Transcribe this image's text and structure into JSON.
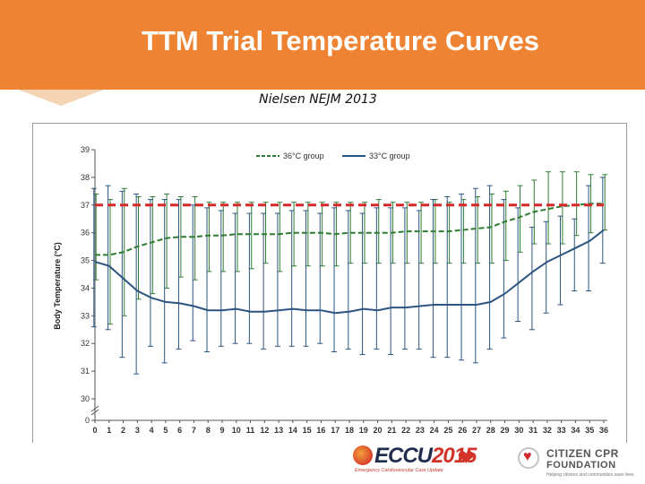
{
  "header": {
    "title": "TTM Trial Temperature Curves",
    "subtitle": "Nielsen NEJM 2013"
  },
  "colors": {
    "banner": "#ee8433",
    "green_series": "#2e7d32",
    "blue_series": "#2c5580",
    "reference_line": "#d62828"
  },
  "chart_data": {
    "type": "line",
    "title": "",
    "xlabel": "",
    "ylabel": "Body Temperature (°C)",
    "x": [
      0,
      1,
      2,
      3,
      4,
      5,
      6,
      7,
      8,
      9,
      10,
      11,
      12,
      13,
      14,
      15,
      16,
      17,
      18,
      19,
      20,
      21,
      22,
      23,
      24,
      25,
      26,
      27,
      28,
      29,
      30,
      31,
      32,
      33,
      34,
      35,
      36
    ],
    "x_tick_labels": [
      "0",
      "1",
      "2",
      "3",
      "4",
      "5",
      "6",
      "7",
      "8",
      "9",
      "10",
      "11",
      "12",
      "13",
      "14",
      "15",
      "16",
      "17",
      "18",
      "19",
      "20",
      "21",
      "22",
      "23",
      "24",
      "25",
      "26",
      "27",
      "28",
      "29",
      "30",
      "31",
      "32",
      "33",
      "34",
      "35",
      "36"
    ],
    "y_tick_labels": [
      "0",
      "30",
      "31",
      "32",
      "33",
      "34",
      "35",
      "36",
      "37",
      "38",
      "39"
    ],
    "ylim": [
      30,
      39
    ],
    "y_axis_break": true,
    "legend": {
      "position": "top-center"
    },
    "series": [
      {
        "name": "36°C group",
        "style": "dashed",
        "color": "#2e7d32",
        "values": [
          35.2,
          35.2,
          35.3,
          35.5,
          35.65,
          35.8,
          35.85,
          35.85,
          35.9,
          35.9,
          35.95,
          35.95,
          35.95,
          35.95,
          36.0,
          36.0,
          36.0,
          35.95,
          36.0,
          36.0,
          36.0,
          36.0,
          36.05,
          36.05,
          36.05,
          36.05,
          36.1,
          36.15,
          36.2,
          36.4,
          36.55,
          36.75,
          36.85,
          36.95,
          37.0,
          37.05,
          37.05
        ],
        "err_low": [
          34.3,
          32.7,
          33.0,
          33.6,
          33.8,
          34.0,
          34.4,
          34.3,
          34.6,
          34.6,
          34.6,
          34.7,
          34.9,
          34.6,
          34.8,
          34.8,
          34.8,
          34.8,
          34.9,
          34.9,
          34.9,
          34.9,
          34.9,
          34.9,
          34.9,
          34.9,
          34.9,
          34.9,
          34.9,
          35.0,
          35.3,
          35.6,
          35.6,
          35.6,
          35.9,
          36.0,
          36.1
        ],
        "err_high": [
          37.4,
          37.2,
          37.6,
          37.3,
          37.3,
          37.4,
          37.3,
          37.3,
          37.1,
          37.1,
          37.1,
          37.1,
          37.1,
          37.1,
          37.1,
          37.1,
          37.1,
          37.1,
          37.1,
          37.1,
          37.2,
          37.1,
          37.1,
          37.1,
          37.2,
          37.1,
          37.2,
          37.3,
          37.4,
          37.5,
          37.7,
          37.9,
          38.2,
          38.2,
          38.2,
          38.1,
          38.1
        ]
      },
      {
        "name": "33°C group",
        "style": "solid",
        "color": "#2c5580",
        "values": [
          34.95,
          34.8,
          34.35,
          33.9,
          33.65,
          33.5,
          33.45,
          33.35,
          33.2,
          33.2,
          33.25,
          33.15,
          33.15,
          33.2,
          33.25,
          33.2,
          33.2,
          33.1,
          33.15,
          33.25,
          33.2,
          33.3,
          33.3,
          33.35,
          33.4,
          33.4,
          33.4,
          33.4,
          33.5,
          33.8,
          34.2,
          34.6,
          34.95,
          35.2,
          35.45,
          35.7,
          36.1
        ],
        "err_low": [
          32.6,
          32.5,
          31.5,
          30.9,
          31.9,
          31.3,
          31.8,
          32.1,
          31.7,
          31.9,
          32.0,
          32.0,
          31.8,
          31.9,
          31.9,
          31.9,
          32.0,
          31.7,
          31.8,
          31.6,
          31.8,
          31.6,
          31.8,
          31.8,
          31.5,
          31.5,
          31.4,
          31.3,
          31.8,
          32.2,
          32.8,
          32.5,
          33.1,
          33.4,
          33.9,
          33.9,
          34.9
        ],
        "err_high": [
          37.6,
          37.7,
          37.5,
          37.4,
          37.2,
          37.2,
          37.2,
          37.0,
          36.9,
          36.8,
          36.7,
          36.7,
          36.7,
          36.7,
          36.8,
          36.8,
          36.7,
          36.9,
          36.8,
          36.7,
          36.9,
          36.9,
          36.9,
          36.8,
          37.2,
          37.3,
          37.4,
          37.6,
          37.7,
          37.2,
          36.9,
          36.2,
          36.4,
          36.6,
          36.5,
          37.7,
          38.0
        ]
      }
    ],
    "reference_line": {
      "y": 37.0,
      "style": "dashed",
      "color": "#d62828"
    }
  },
  "footer": {
    "ecc_logo_text": "ECCU",
    "ecc_logo_year": "2015",
    "ecc_tagline": "Emergency Cardiovascular Care Update",
    "ccf_line1": "CITIZEN CPR",
    "ccf_line2": "FOUNDATION",
    "ccf_tagline": "Helping citizens and communities save lives"
  }
}
